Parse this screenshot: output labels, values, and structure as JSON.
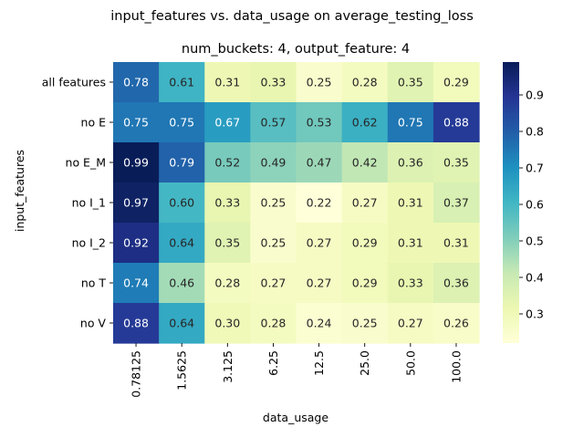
{
  "chart_data": {
    "type": "heatmap",
    "title": "input_features vs. data_usage on average_testing_loss",
    "subtitle": "num_buckets: 4, output_feature: 4",
    "xlabel": "data_usage",
    "ylabel": "input_features",
    "x_categories": [
      "0.78125",
      "1.5625",
      "3.125",
      "6.25",
      "12.5",
      "25.0",
      "50.0",
      "100.0"
    ],
    "y_categories": [
      "all features",
      "no E",
      "no E_M",
      "no I_1",
      "no I_2",
      "no T",
      "no V"
    ],
    "values": [
      [
        0.78,
        0.61,
        0.31,
        0.33,
        0.25,
        0.28,
        0.35,
        0.29
      ],
      [
        0.75,
        0.75,
        0.67,
        0.57,
        0.53,
        0.62,
        0.75,
        0.88
      ],
      [
        0.99,
        0.79,
        0.52,
        0.49,
        0.47,
        0.42,
        0.36,
        0.35
      ],
      [
        0.97,
        0.6,
        0.33,
        0.25,
        0.22,
        0.27,
        0.31,
        0.37
      ],
      [
        0.92,
        0.64,
        0.35,
        0.25,
        0.27,
        0.29,
        0.31,
        0.31
      ],
      [
        0.74,
        0.46,
        0.28,
        0.27,
        0.27,
        0.29,
        0.33,
        0.36
      ],
      [
        0.88,
        0.64,
        0.3,
        0.28,
        0.24,
        0.25,
        0.27,
        0.26
      ]
    ],
    "value_format": "2 decimals",
    "colormap": "YlGnBu",
    "colormap_stops": [
      "#ffffd9",
      "#edf8b1",
      "#c7e9b4",
      "#7fcdbb",
      "#41b6c4",
      "#1d91c0",
      "#225ea8",
      "#253494",
      "#081d58"
    ],
    "color_range": [
      0.22,
      0.99
    ],
    "colorbar_ticks": [
      0.3,
      0.4,
      0.5,
      0.6,
      0.7,
      0.8,
      0.9
    ],
    "grid": false,
    "colorbar_position": "right"
  }
}
